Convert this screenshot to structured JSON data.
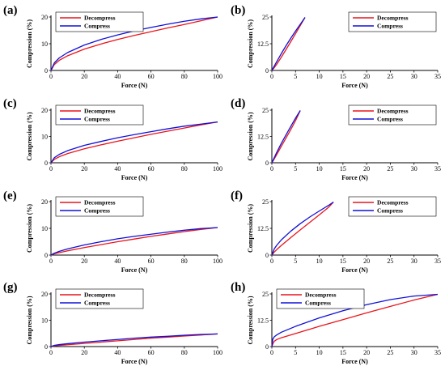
{
  "figure": {
    "colors": {
      "decompress": "#e8151b",
      "compress": "#1010d8",
      "axis": "#000000"
    }
  },
  "chart_data": [
    {
      "type": "line",
      "panel": "(a)",
      "xlabel": "Force (N)",
      "ylabel": "Compression (%)",
      "xlim": [
        0,
        100
      ],
      "ylim": [
        0,
        20
      ],
      "xticks": [
        0,
        20,
        40,
        60,
        80,
        100
      ],
      "yticks": [
        0,
        10,
        20
      ],
      "legend_position": "top-left",
      "series": [
        {
          "name": "Decompress",
          "color": "#e8151b",
          "x": [
            0,
            2,
            5,
            10,
            20,
            30,
            40,
            50,
            60,
            70,
            80,
            90,
            100
          ],
          "y": [
            0,
            2.2,
            3.8,
            5.5,
            8.0,
            9.9,
            11.6,
            13.1,
            14.5,
            15.9,
            17.2,
            18.6,
            20.0
          ]
        },
        {
          "name": "Compress",
          "color": "#1010d8",
          "x": [
            0,
            2,
            5,
            10,
            20,
            30,
            40,
            50,
            60,
            70,
            80,
            90,
            100
          ],
          "y": [
            0,
            2.8,
            4.7,
            6.7,
            9.5,
            11.6,
            13.3,
            14.8,
            16.1,
            17.3,
            18.4,
            19.3,
            20.0
          ]
        }
      ]
    },
    {
      "type": "line",
      "panel": "(b)",
      "xlabel": "Force (N)",
      "ylabel": "Compression (%)",
      "xlim": [
        0,
        35
      ],
      "ylim": [
        0,
        25
      ],
      "xticks": [
        0,
        5,
        10,
        15,
        20,
        25,
        30,
        35
      ],
      "yticks": [
        0,
        12.5,
        25
      ],
      "legend_position": "top-right",
      "series": [
        {
          "name": "Decompress",
          "color": "#e8151b",
          "x": [
            0,
            0.5,
            1,
            2,
            3,
            4,
            5,
            6,
            7
          ],
          "y": [
            0,
            1.3,
            2.8,
            6.2,
            9.8,
            13.5,
            17.2,
            21.0,
            24.8
          ]
        },
        {
          "name": "Compress",
          "color": "#1010d8",
          "x": [
            0,
            0.5,
            1,
            2,
            3,
            4,
            5,
            6,
            7
          ],
          "y": [
            0,
            2.0,
            4.0,
            7.9,
            11.6,
            15.1,
            18.4,
            21.6,
            24.8
          ]
        }
      ]
    },
    {
      "type": "line",
      "panel": "(c)",
      "xlabel": "Force (N)",
      "ylabel": "Compression (%)",
      "xlim": [
        0,
        100
      ],
      "ylim": [
        0,
        20
      ],
      "xticks": [
        0,
        20,
        40,
        60,
        80,
        100
      ],
      "yticks": [
        0,
        10,
        20
      ],
      "legend_position": "top-left",
      "series": [
        {
          "name": "Decompress",
          "color": "#e8151b",
          "x": [
            0,
            2,
            5,
            10,
            20,
            30,
            40,
            50,
            60,
            70,
            80,
            90,
            100
          ],
          "y": [
            0,
            1.3,
            2.3,
            3.5,
            5.3,
            6.8,
            8.2,
            9.5,
            10.8,
            12.0,
            13.2,
            14.4,
            15.5
          ]
        },
        {
          "name": "Compress",
          "color": "#1010d8",
          "x": [
            0,
            2,
            5,
            10,
            20,
            30,
            40,
            50,
            60,
            70,
            80,
            90,
            100
          ],
          "y": [
            0,
            1.9,
            3.2,
            4.6,
            6.6,
            8.1,
            9.5,
            10.7,
            11.8,
            12.9,
            13.9,
            14.7,
            15.5
          ]
        }
      ]
    },
    {
      "type": "line",
      "panel": "(d)",
      "xlabel": "Force (N)",
      "ylabel": "Compression (%)",
      "xlim": [
        0,
        35
      ],
      "ylim": [
        0,
        25
      ],
      "xticks": [
        0,
        5,
        10,
        15,
        20,
        25,
        30,
        35
      ],
      "yticks": [
        0,
        12.5,
        25
      ],
      "legend_position": "top-right",
      "series": [
        {
          "name": "Decompress",
          "color": "#e8151b",
          "x": [
            0,
            0.5,
            1,
            2,
            3,
            4,
            5,
            6
          ],
          "y": [
            0,
            1.8,
            3.8,
            7.8,
            11.8,
            15.8,
            20.0,
            24.8
          ]
        },
        {
          "name": "Compress",
          "color": "#1010d8",
          "x": [
            0,
            0.5,
            1,
            2,
            3,
            4,
            5,
            6
          ],
          "y": [
            0,
            2.4,
            4.8,
            9.2,
            13.3,
            17.3,
            21.2,
            24.8
          ]
        }
      ]
    },
    {
      "type": "line",
      "panel": "(e)",
      "xlabel": "Force (N)",
      "ylabel": "Compression (%)",
      "xlim": [
        0,
        100
      ],
      "ylim": [
        0,
        20
      ],
      "xticks": [
        0,
        20,
        40,
        60,
        80,
        100
      ],
      "yticks": [
        0,
        10,
        20
      ],
      "legend_position": "top-left",
      "series": [
        {
          "name": "Decompress",
          "color": "#e8151b",
          "x": [
            0,
            2,
            5,
            10,
            20,
            30,
            40,
            50,
            60,
            70,
            80,
            90,
            100
          ],
          "y": [
            0,
            0.5,
            0.9,
            1.6,
            2.8,
            3.9,
            5.0,
            6.0,
            7.0,
            7.9,
            8.8,
            9.6,
            10.3
          ]
        },
        {
          "name": "Compress",
          "color": "#1010d8",
          "x": [
            0,
            2,
            5,
            10,
            20,
            30,
            40,
            50,
            60,
            70,
            80,
            90,
            100
          ],
          "y": [
            0,
            0.7,
            1.4,
            2.3,
            3.8,
            5.0,
            6.1,
            7.0,
            7.8,
            8.6,
            9.3,
            9.9,
            10.3
          ]
        }
      ]
    },
    {
      "type": "line",
      "panel": "(f)",
      "xlabel": "Force (N)",
      "ylabel": "Compression (%)",
      "xlim": [
        0,
        35
      ],
      "ylim": [
        0,
        25
      ],
      "xticks": [
        0,
        5,
        10,
        15,
        20,
        25,
        30,
        35
      ],
      "yticks": [
        0,
        12.5,
        25
      ],
      "legend_position": "top-right",
      "series": [
        {
          "name": "Decompress",
          "color": "#e8151b",
          "x": [
            0,
            0.5,
            1,
            2,
            4,
            6,
            8,
            10,
            12,
            13
          ],
          "y": [
            0,
            1.4,
            2.5,
            4.5,
            8.2,
            11.8,
            15.3,
            18.8,
            22.4,
            24.8
          ]
        },
        {
          "name": "Compress",
          "color": "#1010d8",
          "x": [
            0,
            0.5,
            1,
            2,
            4,
            6,
            8,
            10,
            12,
            13
          ],
          "y": [
            0,
            2.9,
            4.5,
            7.1,
            11.2,
            14.7,
            17.8,
            20.6,
            23.3,
            24.8
          ]
        }
      ]
    },
    {
      "type": "line",
      "panel": "(g)",
      "xlabel": "Force (N)",
      "ylabel": "Compression (%)",
      "xlim": [
        0,
        100
      ],
      "ylim": [
        0,
        20
      ],
      "xticks": [
        0,
        20,
        40,
        60,
        80,
        100
      ],
      "yticks": [
        0,
        10,
        20
      ],
      "legend_position": "top-left",
      "series": [
        {
          "name": "Decompress",
          "color": "#e8151b",
          "x": [
            0,
            2,
            5,
            10,
            20,
            30,
            40,
            50,
            60,
            70,
            80,
            90,
            100
          ],
          "y": [
            0,
            0.25,
            0.45,
            0.7,
            1.2,
            1.7,
            2.2,
            2.7,
            3.2,
            3.6,
            4.0,
            4.4,
            4.8
          ]
        },
        {
          "name": "Compress",
          "color": "#1010d8",
          "x": [
            0,
            2,
            5,
            10,
            20,
            30,
            40,
            50,
            60,
            70,
            80,
            90,
            100
          ],
          "y": [
            0,
            0.45,
            0.75,
            1.1,
            1.7,
            2.2,
            2.7,
            3.2,
            3.6,
            3.9,
            4.3,
            4.6,
            4.8
          ]
        }
      ]
    },
    {
      "type": "line",
      "panel": "(h)",
      "xlabel": "Force (N)",
      "ylabel": "Compression (%)",
      "xlim": [
        0,
        35
      ],
      "ylim": [
        0,
        25
      ],
      "xticks": [
        0,
        5,
        10,
        15,
        20,
        25,
        30,
        35
      ],
      "yticks": [
        0,
        12.5,
        25
      ],
      "legend_position": "top-left",
      "series": [
        {
          "name": "Decompress",
          "color": "#e8151b",
          "x": [
            0,
            0.2,
            0.5,
            1,
            2,
            5,
            10,
            15,
            20,
            25,
            30,
            35
          ],
          "y": [
            0,
            1.2,
            2.5,
            3.3,
            4.2,
            6.2,
            9.6,
            12.8,
            16.0,
            19.1,
            22.1,
            24.8
          ]
        },
        {
          "name": "Compress",
          "color": "#1010d8",
          "x": [
            0,
            0.2,
            0.5,
            1,
            2,
            5,
            10,
            15,
            20,
            25,
            30,
            35
          ],
          "y": [
            0,
            3.5,
            4.6,
            5.5,
            6.8,
            9.6,
            13.6,
            17.0,
            19.9,
            22.3,
            24.0,
            24.8
          ]
        }
      ]
    }
  ]
}
